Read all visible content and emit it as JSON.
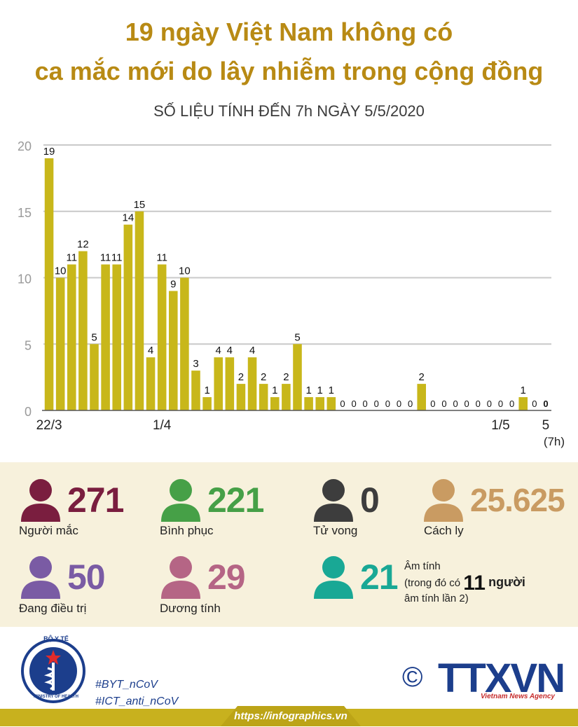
{
  "title_line1": "19 ngày Việt Nam không có",
  "title_line2": "ca mắc mới do lây nhiễm trong cộng đồng",
  "subtitle": "SỐ LIỆU TÍNH ĐẾN 7h NGÀY 5/5/2020",
  "chart_data": {
    "type": "bar",
    "values": [
      19,
      10,
      11,
      12,
      5,
      11,
      11,
      14,
      15,
      4,
      11,
      9,
      10,
      3,
      1,
      4,
      4,
      2,
      4,
      2,
      1,
      2,
      5,
      1,
      1,
      1,
      0,
      0,
      0,
      0,
      0,
      0,
      0,
      2,
      0,
      0,
      0,
      0,
      0,
      0,
      0,
      0,
      1,
      0,
      0
    ],
    "x_tick_labels": [
      {
        "index": 0,
        "label": "22/3"
      },
      {
        "index": 10,
        "label": "1/4"
      },
      {
        "index": 40,
        "label": "1/5"
      },
      {
        "index": 44,
        "label": "5"
      }
    ],
    "last_note": "(7h)",
    "y_ticks": [
      0,
      5,
      10,
      15,
      20
    ],
    "ylim": [
      0,
      20
    ],
    "bar_color": "#c8b71a",
    "grid": true
  },
  "stats": [
    {
      "key": "cases",
      "value": "271",
      "label": "Người mắc",
      "color": "#7a1e3f"
    },
    {
      "key": "recovered",
      "value": "221",
      "label": "Bình phục",
      "color": "#46a047"
    },
    {
      "key": "deaths",
      "value": "0",
      "label": "Tử vong",
      "color": "#3d3d3d"
    },
    {
      "key": "isolated",
      "value": "25.625",
      "label": "Cách ly",
      "color": "#c99b62"
    },
    {
      "key": "treating",
      "value": "50",
      "label": "Đang điều trị",
      "color": "#7a5ba4"
    },
    {
      "key": "positive",
      "value": "29",
      "label": "Dương tính",
      "color": "#b56585"
    },
    {
      "key": "negative",
      "value": "21",
      "color": "#19a895"
    }
  ],
  "negative_note": {
    "line1": "Âm tính",
    "line2a": "(trong đó có",
    "line2b": "11",
    "line2c": "người",
    "line3": "âm tính lần 2)"
  },
  "footer": {
    "tag1": "#BYT_nCoV",
    "tag2": "#ICT_anti_nCoV",
    "url": "https://infographics.vn",
    "copyright": "©",
    "brand": "TTXVN",
    "brand_sub": "Vietnam News Agency",
    "ministry_top": "BỘ Y TẾ",
    "ministry_bottom": "MINISTRY OF HEALTH"
  }
}
